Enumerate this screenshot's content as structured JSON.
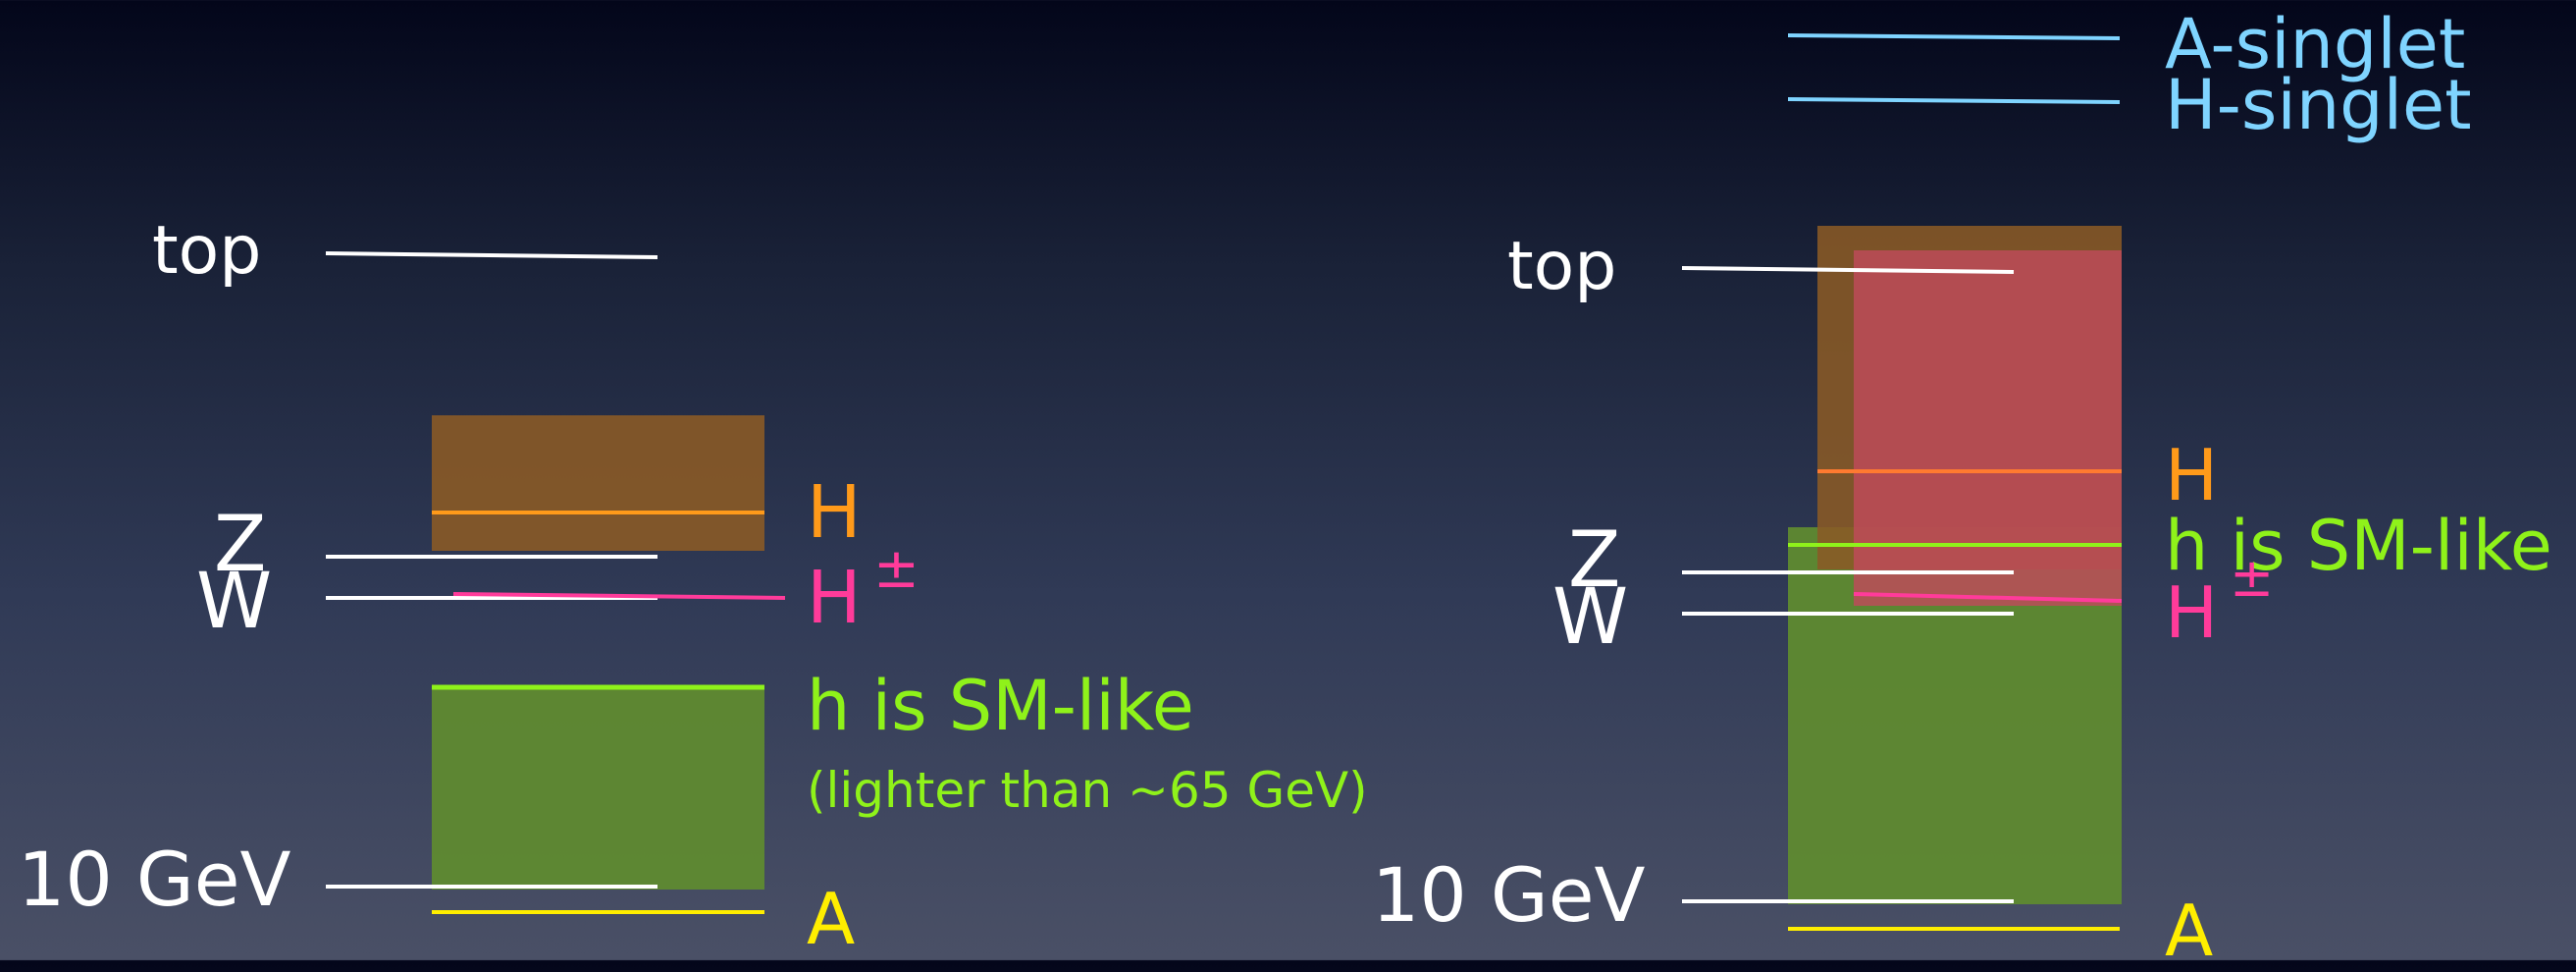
{
  "left_panel": {
    "labels": {
      "top": "top",
      "z": "Z",
      "w": "W",
      "ten_gev": "10 GeV",
      "heavy_h": "H",
      "charged_h": "H",
      "charged_h_sup": "±",
      "light_h": "h is SM-like",
      "light_h_note": "(lighter than ~65 GeV)",
      "pseudo_a": "A"
    }
  },
  "right_panel": {
    "labels": {
      "top": "top",
      "z": "Z",
      "w": "W",
      "ten_gev": "10 GeV",
      "heavy_h": "H",
      "light_h": "h is SM-like",
      "charged_h": "H",
      "charged_h_sup": "±",
      "pseudo_a": "A",
      "a_singlet": "A-singlet",
      "h_singlet": "H-singlet"
    }
  },
  "colors": {
    "reference_lines": "#ffffff",
    "heavy_h": "#ff9a1a",
    "charged_h": "#ff3b9a",
    "light_h": "#8ff21a",
    "pseudo_a": "#ffee00",
    "singlets": "#7fd4ff"
  }
}
